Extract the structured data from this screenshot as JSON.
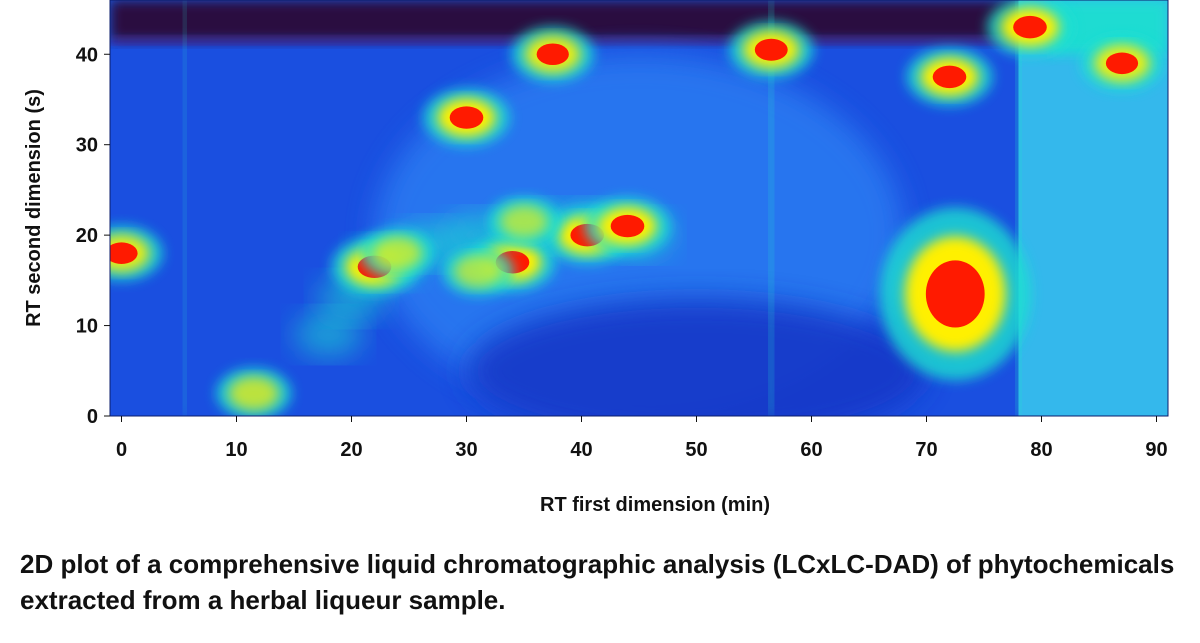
{
  "chart_data": {
    "type": "heatmap",
    "title": "",
    "xlabel": "RT first dimension (min)",
    "ylabel": "RT second dimension (s)",
    "xlim": [
      -1,
      91
    ],
    "ylim": [
      0,
      46
    ],
    "xticks": [
      0,
      10,
      20,
      30,
      40,
      50,
      60,
      70,
      80,
      90
    ],
    "yticks": [
      0,
      10,
      20,
      30,
      40
    ],
    "colors": {
      "background": "#1a4fe0",
      "low": "#2a7cf2",
      "mid": "#1ee0d0",
      "high": "#fff000",
      "peak": "#ff1a00",
      "solvent_band": "#2a0a40"
    },
    "peaks": [
      {
        "x": 22,
        "y": 16.5,
        "intensity": 1.0
      },
      {
        "x": 30,
        "y": 33,
        "intensity": 1.0
      },
      {
        "x": 34,
        "y": 17,
        "intensity": 1.0
      },
      {
        "x": 40.5,
        "y": 20,
        "intensity": 1.0
      },
      {
        "x": 44,
        "y": 21,
        "intensity": 1.0
      },
      {
        "x": 37.5,
        "y": 40,
        "intensity": 0.9
      },
      {
        "x": 56.5,
        "y": 40.5,
        "intensity": 0.95
      },
      {
        "x": 72.5,
        "y": 13.5,
        "intensity": 1.0
      },
      {
        "x": 72,
        "y": 37.5,
        "intensity": 1.0
      },
      {
        "x": 79,
        "y": 43,
        "intensity": 1.0
      },
      {
        "x": 87,
        "y": 39,
        "intensity": 0.9
      },
      {
        "x": 11.5,
        "y": 2.5,
        "intensity": 0.7
      },
      {
        "x": 35,
        "y": 21.5,
        "intensity": 0.6
      },
      {
        "x": 31,
        "y": 16,
        "intensity": 0.6
      },
      {
        "x": 24,
        "y": 18,
        "intensity": 0.65
      },
      {
        "x": 0,
        "y": 18,
        "intensity": 0.9
      }
    ]
  },
  "caption": "2D plot of a comprehensive liquid chromatographic analysis (LCxLC-DAD) of phytochemicals extracted from a herbal liqueur sample."
}
